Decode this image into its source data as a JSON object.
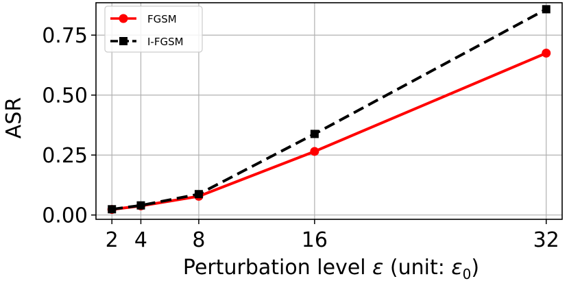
{
  "chart_data": {
    "type": "line",
    "x": [
      2,
      4,
      8,
      16,
      32
    ],
    "xticks": [
      "2",
      "4",
      "8",
      "16",
      "32"
    ],
    "yticks": [
      "0.00",
      "0.25",
      "0.50",
      "0.75"
    ],
    "ytick_values": [
      0,
      0.25,
      0.5,
      0.75
    ],
    "xlim": [
      0.9,
      33.1
    ],
    "ylim": [
      -0.018,
      0.885
    ],
    "xlabel_main": "Perturbation level ",
    "xlabel_eps": "ε",
    "xlabel_unit": " (unit: ",
    "xlabel_eps0": "ε",
    "xlabel_sub": "0",
    "xlabel_close": ")",
    "ylabel": "ASR",
    "grid": true,
    "legend_position": "top-left",
    "series": [
      {
        "name": "FGSM",
        "values": [
          0.023,
          0.038,
          0.078,
          0.265,
          0.675
        ],
        "color": "#ff0000",
        "marker": "circle",
        "linestyle": "solid"
      },
      {
        "name": "I-FGSM",
        "values": [
          0.024,
          0.04,
          0.087,
          0.338,
          0.858
        ],
        "color": "#000000",
        "marker": "square",
        "linestyle": "dashed"
      }
    ]
  }
}
